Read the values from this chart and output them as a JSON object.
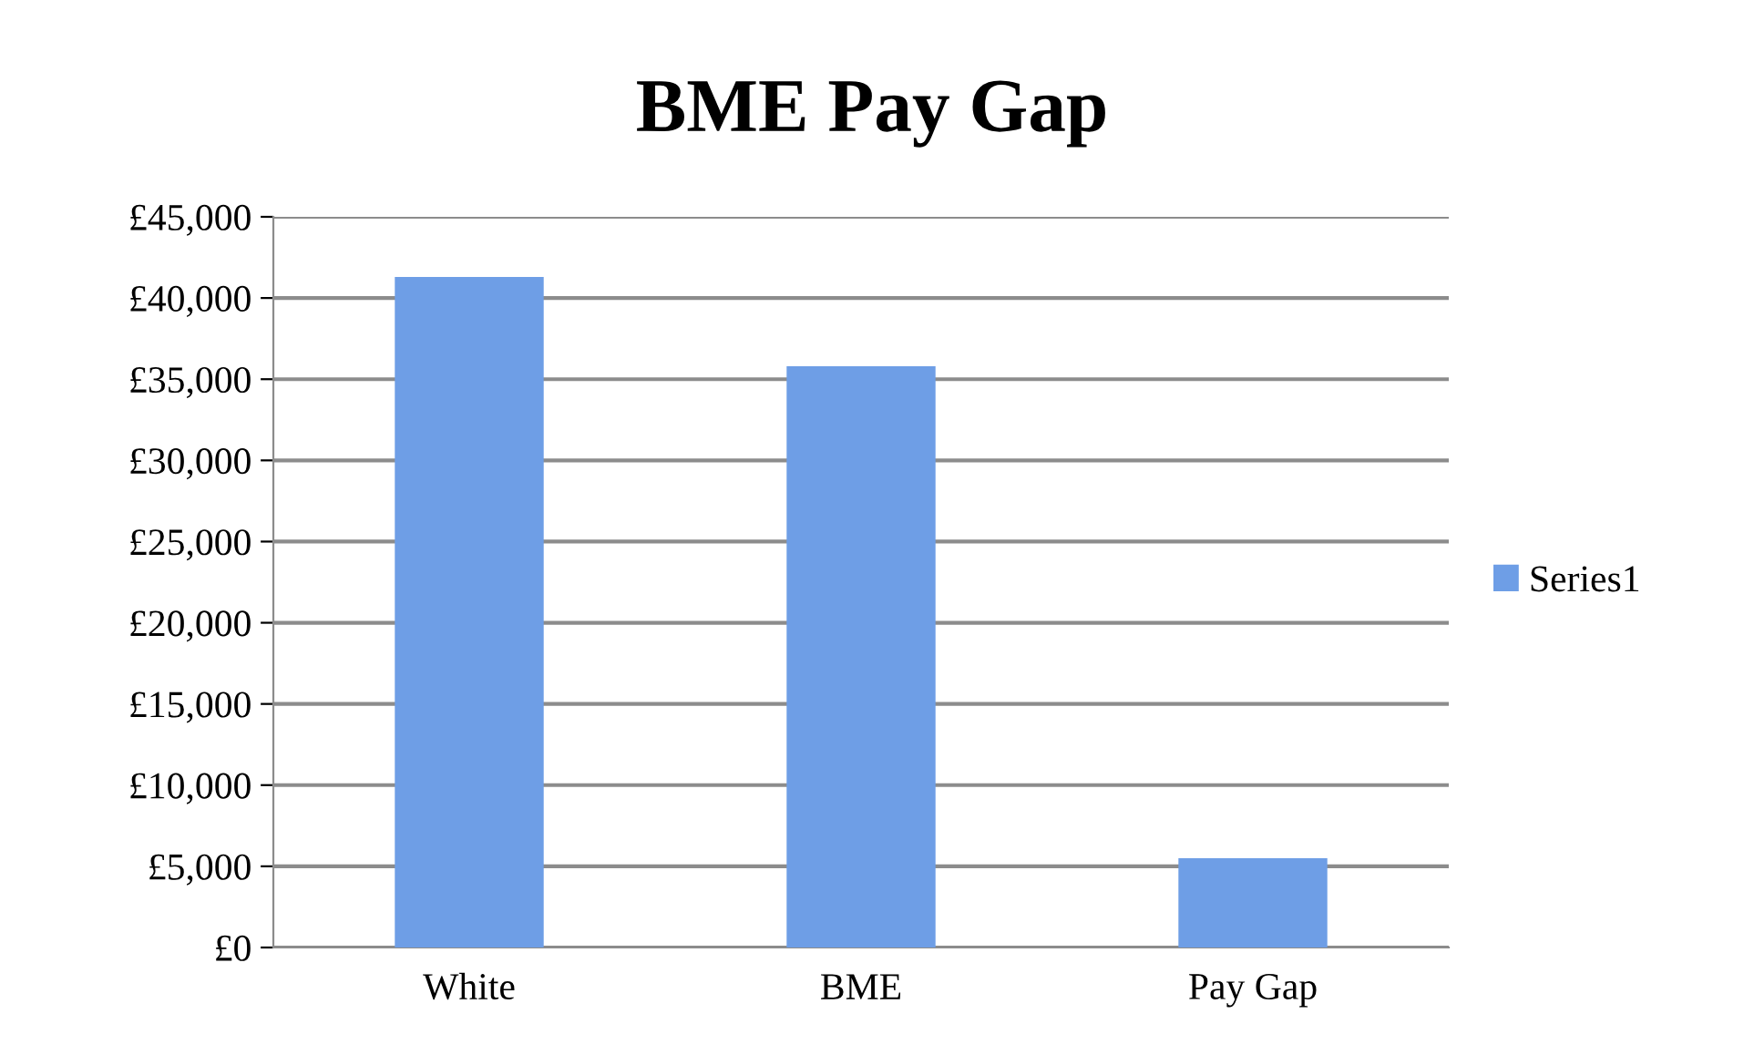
{
  "chart_data": {
    "type": "bar",
    "title": "BME Pay Gap",
    "categories": [
      "White",
      "BME",
      "Pay Gap"
    ],
    "series": [
      {
        "name": "Series1",
        "color": "#6e9ee6",
        "values": [
          41300,
          35800,
          5500
        ]
      }
    ],
    "ylim": [
      0,
      45000
    ],
    "yticks": [
      {
        "value": 0,
        "label": "£0"
      },
      {
        "value": 5000,
        "label": "£5,000"
      },
      {
        "value": 10000,
        "label": "£10,000"
      },
      {
        "value": 15000,
        "label": "£15,000"
      },
      {
        "value": 20000,
        "label": "£20,000"
      },
      {
        "value": 25000,
        "label": "£25,000"
      },
      {
        "value": 30000,
        "label": "£30,000"
      },
      {
        "value": 35000,
        "label": "£35,000"
      },
      {
        "value": 40000,
        "label": "£40,000"
      },
      {
        "value": 45000,
        "label": "£45,000"
      }
    ],
    "grid": "y",
    "legend": "right"
  }
}
